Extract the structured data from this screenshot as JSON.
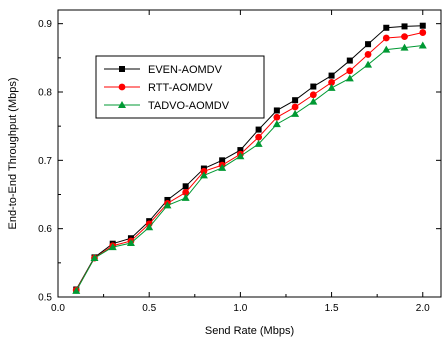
{
  "chart_data": {
    "type": "line",
    "title": "",
    "xlabel": "Send Rate (Mbps)",
    "ylabel": "End-to-End Throughput (Mbps)",
    "xlim": [
      0.0,
      2.1
    ],
    "ylim": [
      0.5,
      0.92
    ],
    "xticks": [
      0.0,
      0.5,
      1.0,
      1.5,
      2.0
    ],
    "xtick_labels": [
      "0.0",
      "0.5",
      "1.0",
      "1.5",
      "2.0"
    ],
    "yticks": [
      0.5,
      0.6,
      0.7,
      0.8,
      0.9
    ],
    "ytick_labels": [
      "0.5",
      "0.6",
      "0.7",
      "0.8",
      "0.9"
    ],
    "grid": false,
    "legend_position": "upper-left",
    "x": [
      0.1,
      0.2,
      0.3,
      0.4,
      0.5,
      0.6,
      0.7,
      0.8,
      0.9,
      1.0,
      1.1,
      1.2,
      1.3,
      1.4,
      1.5,
      1.6,
      1.7,
      1.8,
      1.9,
      2.0
    ],
    "series": [
      {
        "name": "EVEN-AOMDV",
        "color": "#000000",
        "marker": "square",
        "values": [
          0.511,
          0.558,
          0.578,
          0.586,
          0.611,
          0.642,
          0.662,
          0.688,
          0.7,
          0.715,
          0.745,
          0.773,
          0.788,
          0.808,
          0.824,
          0.846,
          0.87,
          0.894,
          0.896,
          0.897
        ]
      },
      {
        "name": "RTT-AOMDV",
        "color": "#ff0000",
        "marker": "circle",
        "values": [
          0.51,
          0.557,
          0.575,
          0.582,
          0.607,
          0.637,
          0.653,
          0.684,
          0.693,
          0.709,
          0.734,
          0.763,
          0.778,
          0.796,
          0.814,
          0.831,
          0.855,
          0.879,
          0.881,
          0.887
        ]
      },
      {
        "name": "TADVO-AOMDV",
        "color": "#009933",
        "marker": "triangle",
        "values": [
          0.509,
          0.557,
          0.573,
          0.579,
          0.602,
          0.634,
          0.645,
          0.678,
          0.689,
          0.706,
          0.724,
          0.753,
          0.768,
          0.786,
          0.806,
          0.82,
          0.84,
          0.862,
          0.865,
          0.868
        ]
      }
    ]
  }
}
